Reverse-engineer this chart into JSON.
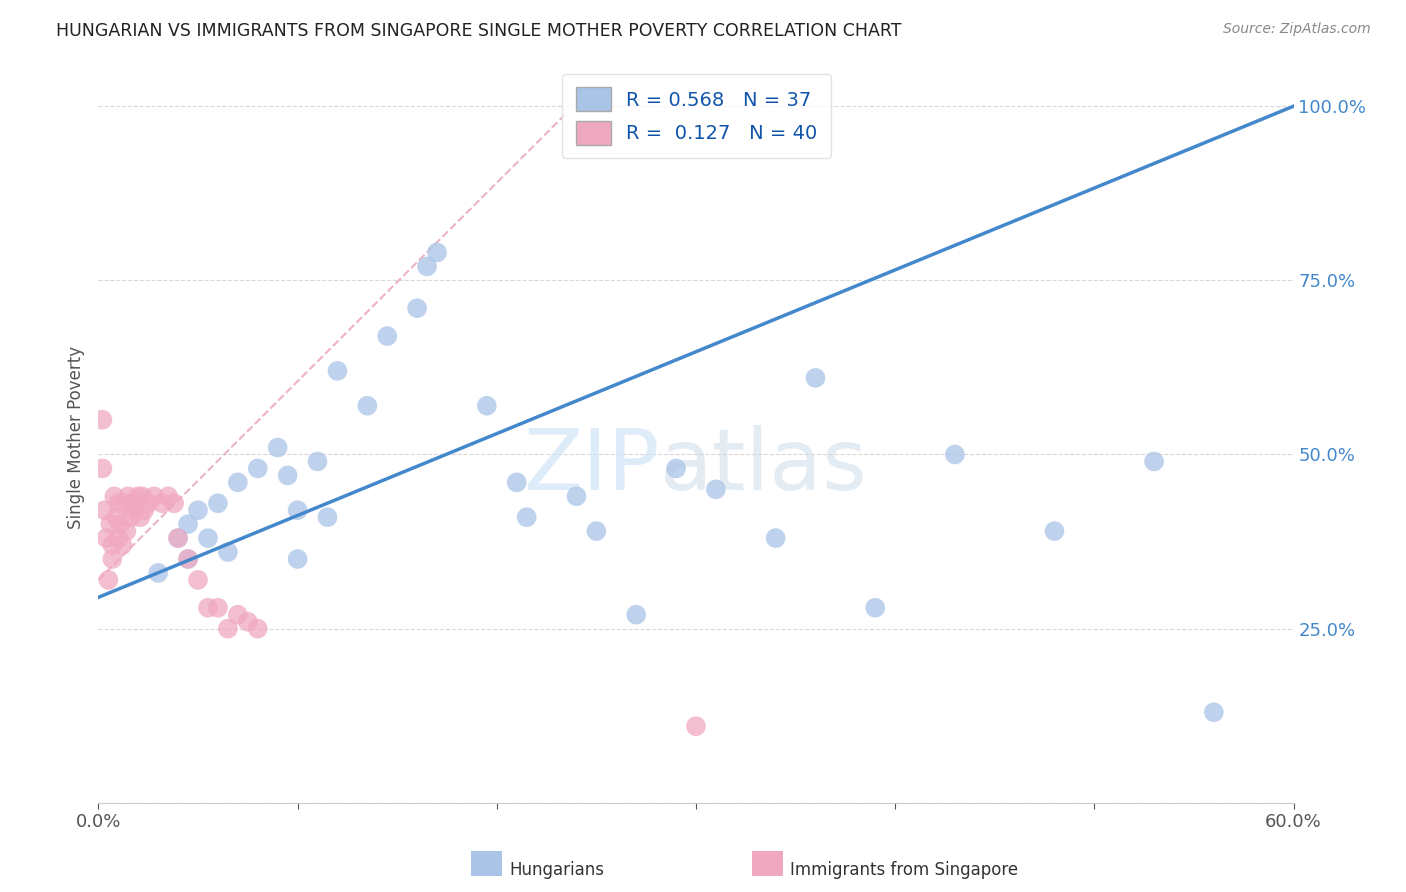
{
  "title": "HUNGARIAN VS IMMIGRANTS FROM SINGAPORE SINGLE MOTHER POVERTY CORRELATION CHART",
  "source": "Source: ZipAtlas.com",
  "ylabel": "Single Mother Poverty",
  "legend_label1": "R = 0.568   N = 37",
  "legend_label2": "R =  0.127   N = 40",
  "blue_color": "#aac4e8",
  "pink_color": "#f0a8c0",
  "blue_line_color": "#4488cc",
  "pink_line_color": "#e8a0b8",
  "watermark_zip": "ZIP",
  "watermark_atlas": "atlas",
  "blue_scatter_x": [
    0.03,
    0.04,
    0.045,
    0.045,
    0.05,
    0.055,
    0.06,
    0.065,
    0.07,
    0.08,
    0.09,
    0.095,
    0.1,
    0.1,
    0.11,
    0.115,
    0.12,
    0.135,
    0.145,
    0.16,
    0.165,
    0.17,
    0.195,
    0.21,
    0.215,
    0.24,
    0.25,
    0.27,
    0.29,
    0.31,
    0.34,
    0.36,
    0.39,
    0.43,
    0.48,
    0.53,
    0.56
  ],
  "blue_scatter_y": [
    0.33,
    0.38,
    0.4,
    0.35,
    0.42,
    0.38,
    0.43,
    0.36,
    0.46,
    0.48,
    0.51,
    0.47,
    0.35,
    0.42,
    0.49,
    0.41,
    0.62,
    0.57,
    0.67,
    0.71,
    0.77,
    0.79,
    0.57,
    0.46,
    0.41,
    0.44,
    0.39,
    0.27,
    0.48,
    0.45,
    0.38,
    0.61,
    0.28,
    0.5,
    0.39,
    0.49,
    0.13
  ],
  "pink_scatter_x": [
    0.002,
    0.002,
    0.003,
    0.004,
    0.005,
    0.006,
    0.007,
    0.007,
    0.008,
    0.009,
    0.01,
    0.01,
    0.011,
    0.012,
    0.013,
    0.014,
    0.015,
    0.016,
    0.017,
    0.018,
    0.018,
    0.02,
    0.021,
    0.022,
    0.023,
    0.025,
    0.028,
    0.032,
    0.035,
    0.038,
    0.04,
    0.045,
    0.05,
    0.055,
    0.06,
    0.065,
    0.07,
    0.075,
    0.08,
    0.3
  ],
  "pink_scatter_y": [
    0.55,
    0.48,
    0.42,
    0.38,
    0.32,
    0.4,
    0.37,
    0.35,
    0.44,
    0.41,
    0.43,
    0.38,
    0.4,
    0.37,
    0.43,
    0.39,
    0.44,
    0.41,
    0.43,
    0.42,
    0.43,
    0.44,
    0.41,
    0.44,
    0.42,
    0.43,
    0.44,
    0.43,
    0.44,
    0.43,
    0.38,
    0.35,
    0.32,
    0.28,
    0.28,
    0.25,
    0.27,
    0.26,
    0.25,
    0.11
  ],
  "blue_trend_x": [
    0.0,
    0.6
  ],
  "blue_trend_y": [
    0.295,
    1.0
  ],
  "pink_trend_x": [
    0.0,
    0.235
  ],
  "pink_trend_y": [
    0.32,
    0.99
  ],
  "xlim": [
    0.0,
    0.6
  ],
  "ylim": [
    0.0,
    1.05
  ],
  "xtick_positions": [
    0.0,
    0.1,
    0.2,
    0.3,
    0.4,
    0.5,
    0.6
  ],
  "ytick_positions": [
    0.0,
    0.25,
    0.5,
    0.75,
    1.0
  ],
  "ytick_labels": [
    "",
    "25.0%",
    "50.0%",
    "75.0%",
    "100.0%"
  ],
  "background_color": "#ffffff",
  "grid_color": "#d8d8d8",
  "title_color": "#222222",
  "axis_color": "#4488cc",
  "label_color": "#555555"
}
